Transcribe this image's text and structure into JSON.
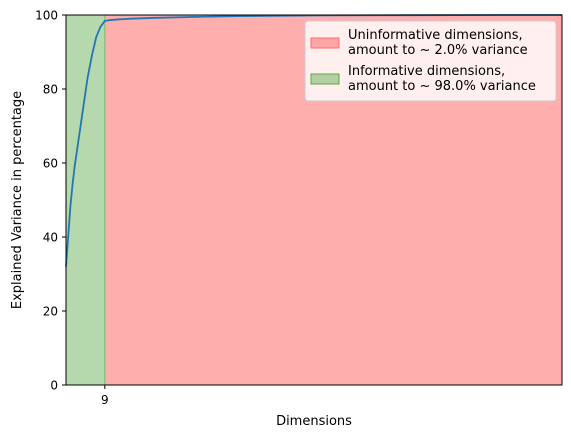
{
  "chart_data": {
    "type": "area",
    "xlabel": "Dimensions",
    "ylabel": "Explained Variance in percentage",
    "xlim": [
      0,
      115
    ],
    "ylim": [
      0,
      100
    ],
    "yticks": [
      0,
      20,
      40,
      60,
      80,
      100
    ],
    "xticks": [
      9
    ],
    "cutoff_dimension": 9,
    "legend_position": "upper-right",
    "grid": false,
    "regions": [
      {
        "label": "Uninformative dimensions,\namount to ~ 2.0% variance",
        "from": 9,
        "to": 115,
        "color": "#ff6b6b",
        "alpha": 0.55
      },
      {
        "label": "Informative dimensions,\namount to ~ 98.0% variance",
        "from": 0,
        "to": 9,
        "color": "#5aa84a",
        "alpha": 0.45
      }
    ],
    "series": [
      {
        "color": "#1f77b4",
        "x": [
          0,
          0.5,
          1,
          1.5,
          2,
          3,
          4,
          5,
          6,
          7,
          8,
          9,
          10,
          12,
          15,
          20,
          30,
          40,
          50,
          60,
          80,
          100,
          115
        ],
        "y": [
          32,
          40,
          48,
          54,
          59,
          67,
          75,
          83,
          89,
          94,
          96.8,
          98.4,
          98.6,
          98.8,
          99.0,
          99.2,
          99.5,
          99.7,
          99.8,
          99.9,
          99.95,
          100,
          100
        ]
      }
    ]
  }
}
